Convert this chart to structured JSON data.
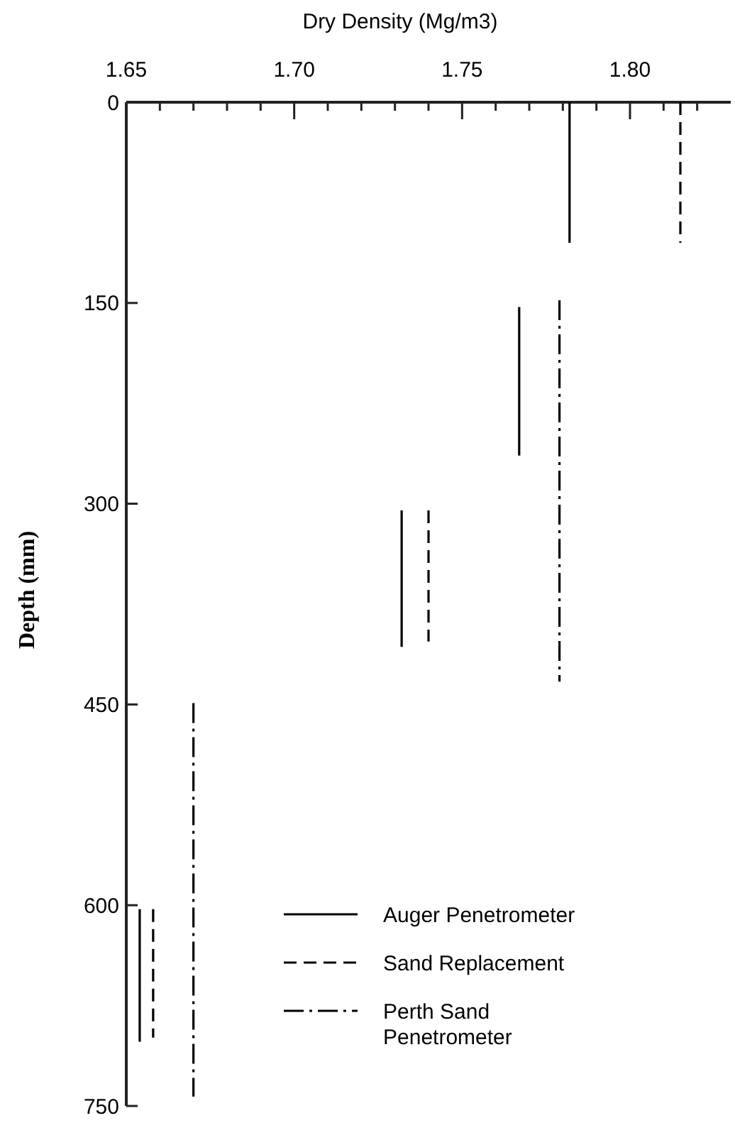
{
  "chart_data": {
    "type": "line",
    "xlabel": "Dry Density (Mg/m3)",
    "ylabel": "Depth (mm)",
    "xlim": [
      1.65,
      1.83
    ],
    "xticks": [
      {
        "value": 1.65,
        "label": "1.65"
      },
      {
        "value": 1.66,
        "label": null
      },
      {
        "value": 1.67,
        "label": null
      },
      {
        "value": 1.68,
        "label": null
      },
      {
        "value": 1.69,
        "label": null
      },
      {
        "value": 1.7,
        "label": "1.70"
      },
      {
        "value": 1.71,
        "label": null
      },
      {
        "value": 1.72,
        "label": null
      },
      {
        "value": 1.73,
        "label": null
      },
      {
        "value": 1.74,
        "label": null
      },
      {
        "value": 1.75,
        "label": "1.75"
      },
      {
        "value": 1.76,
        "label": null
      },
      {
        "value": 1.77,
        "label": null
      },
      {
        "value": 1.78,
        "label": null
      },
      {
        "value": 1.79,
        "label": null
      },
      {
        "value": 1.8,
        "label": "1.80"
      },
      {
        "value": 1.81,
        "label": null
      },
      {
        "value": 1.82,
        "label": null
      }
    ],
    "ylim": [
      750,
      0
    ],
    "yticks": [
      0,
      150,
      300,
      450,
      600,
      750
    ],
    "grid": false,
    "legend": "bottom right",
    "series": [
      {
        "name": "Auger Penetrometer",
        "color": "#000000",
        "line_style": "solid",
        "x": [
          1.782,
          1.782,
          null,
          1.767,
          1.767,
          null,
          1.732,
          1.732,
          null,
          1.654,
          1.654
        ],
        "values": [
          0,
          105,
          null,
          153,
          264,
          null,
          305,
          407,
          null,
          603,
          702
        ]
      },
      {
        "name": "Sand Replacement",
        "color": "#000000",
        "line_style": "dashed",
        "x": [
          1.815,
          1.815,
          null,
          1.74,
          1.74,
          null,
          1.658,
          1.658
        ],
        "values": [
          0,
          105,
          null,
          305,
          403,
          null,
          603,
          699
        ]
      },
      {
        "name": "Perth Sand Penetrometer",
        "color": "#000000",
        "line_style": "dashdot",
        "x": [
          1.779,
          1.779,
          null,
          1.67,
          1.67
        ],
        "values": [
          148,
          433,
          null,
          449,
          743
        ]
      }
    ]
  }
}
